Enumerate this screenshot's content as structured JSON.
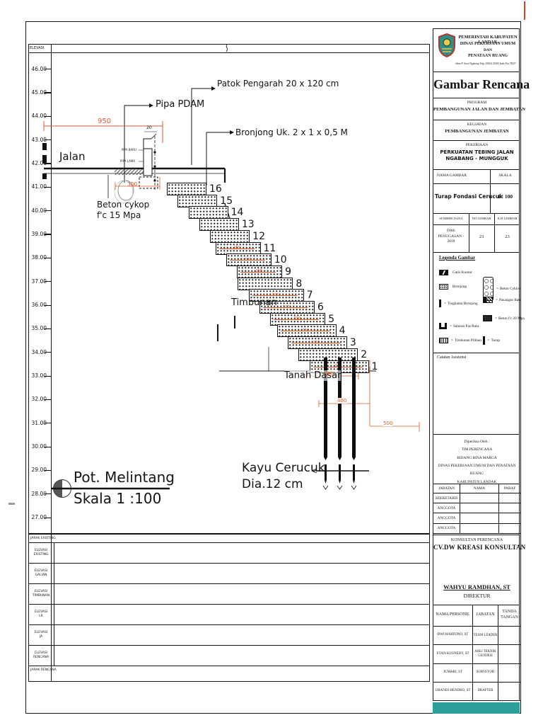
{
  "colors": {
    "line": "#141414",
    "dim_orange": "#e05a28",
    "teal_bar": "#2d9e98",
    "logo_teal": "#2f8f86",
    "logo_red": "#b5372c",
    "logo_yellow": "#e8c54c"
  },
  "drawing": {
    "elevasi_header": "ELEVASI",
    "elevations": [
      "46.00",
      "45.00",
      "44.00",
      "43.00",
      "42.00",
      "41.00",
      "40.00",
      "39.00",
      "38.00",
      "37.00",
      "36.00",
      "35.00",
      "34.00",
      "33.00",
      "32.00",
      "31.00",
      "30.00",
      "29.00",
      "28.00",
      "27.00"
    ],
    "annotations": {
      "jalan": "Jalan",
      "pipa_pdam": "Pipa PDAM",
      "patok_pengarah": "Patok Pengarah 20 x 120 cm",
      "bronjong_uk": "Bronjong Uk. 2 x 1 x 0,5 M",
      "beton_cykop_line1": "Beton cykop",
      "beton_cykop_line2": "f'c 15 Mpa",
      "timbunan": "Timbunan",
      "tanah_dasar": "Tanah Dasar",
      "kayu_cerucuk_line1": "Kayu Cerucuk",
      "kayu_cerucuk_line2": "Dia.12 cm",
      "pot_melintang": "Pot. Melintang",
      "skala": "Skala 1 :100",
      "pipe_tag_top": "PIPA BARU",
      "pipe_tag_bottom": "PIPA LAMA"
    },
    "dimensions": {
      "top_width": "950",
      "pipe_top": "20",
      "cykop_width": "300",
      "step_dim": "200",
      "pile_top": "400",
      "pile_mid": "400",
      "pile_right": "500"
    },
    "steps": [
      {
        "n": "16",
        "dim": ""
      },
      {
        "n": "15",
        "dim": ""
      },
      {
        "n": "14",
        "dim": ""
      },
      {
        "n": "13",
        "dim": ""
      },
      {
        "n": "12",
        "dim": ""
      },
      {
        "n": "11",
        "dim": "200"
      },
      {
        "n": "10",
        "dim": "200"
      },
      {
        "n": "9",
        "dim": "200"
      },
      {
        "n": "8",
        "dim": ""
      },
      {
        "n": "7",
        "dim": "200"
      },
      {
        "n": "6",
        "dim": "200"
      },
      {
        "n": "5",
        "dim": "200"
      },
      {
        "n": "4",
        "dim": "200"
      },
      {
        "n": "3",
        "dim": "200"
      },
      {
        "n": "2",
        "dim": ""
      },
      {
        "n": "1",
        "dim": "200"
      }
    ],
    "bottom_rows": {
      "band_top": "JARAK EXISTING",
      "rows": [
        [
          "ELEVASI",
          "EXISTING"
        ],
        [
          "ELEVASI",
          "GALIAN"
        ],
        [
          "ELEVASI",
          "TIMBUNAN"
        ],
        [
          "ELEVASI",
          "LR"
        ],
        [
          "ELEVASI",
          "JA"
        ],
        [
          "ELEVASI",
          "RENCANA"
        ]
      ],
      "band_bottom": "JARAK RENCANA"
    }
  },
  "titleblock": {
    "header": {
      "line1": "PEMERINTAH KABUPATEN LANDAK",
      "line2": "DINAS PEKERJAAN UMUM",
      "line3": "DAN",
      "line4": "PENATAAN RUANG",
      "address": "Jalan P. Gusti Ngabang Telp. (0563) 21005 kode Pos 78357"
    },
    "doc_title": "Gambar Rencana",
    "program_label": "PROGRAM",
    "program_value": "PEMBANGUNAN JALAN DAN JEMBATAN",
    "kegiatan_label": "KEGIATAN",
    "kegiatan_value": "PEMBANGUNAN JEMBATAN",
    "pekerjaan_label": "PEKERJAAN",
    "pekerjaan_value": "PERKUATAN TEBING JALAN NGABANG - MUNGGUK",
    "nama_gambar_label": "NAMA GAMBAR",
    "skala_label": "SKALA",
    "nama_gambar_value": "Turap Fondasi Cerucuk",
    "skala_value": "1 : 100",
    "sumber_dana_label": "SUMBER DANA",
    "no_lembar_label": "NO LEMBAR",
    "jlh_lembar_label": "JLH LEMBAR",
    "sumber_dana_value": "DAK PENUGASAN - 2018",
    "no_lembar_value": "23",
    "jlh_lembar_value": "23",
    "legend_title": "Legenda Gambar",
    "legend_left": [
      {
        "icon": "kontur",
        "eq": "",
        "label": "Garis Kontur"
      },
      {
        "icon": "bronjong",
        "eq": "",
        "label": "Bronjong"
      },
      {
        "icon": "tingkat",
        "eq": "=",
        "label": "Tingkatan Bronjong"
      },
      {
        "icon": "saluran",
        "eq": "=",
        "label": "Saluran Pas Batu"
      },
      {
        "icon": "timbunan",
        "eq": "=",
        "label": "Timbunan Pilihan"
      }
    ],
    "legend_right": [
      {
        "icon": "cyklop",
        "eq": "=",
        "label": "Beton Cyklop"
      },
      {
        "icon": "pasangan",
        "eq": "=",
        "label": "Pasangan Batu"
      },
      {
        "icon": "beton20",
        "eq": "=",
        "label": "Beton f'c 20 Mpa"
      },
      {
        "icon": "turap",
        "eq": "=",
        "label": "Turap"
      }
    ],
    "catatan_label": "Catatan Asistensi",
    "diperiksa": [
      "Diperiksa Oleh :",
      "TIM PERENCANA",
      "BIDANG BINA MARGA",
      "DINAS PEKERJAAN UMUM DAN PENATAAN RUANG",
      "KABUPATEN LANDAK"
    ],
    "jabatan_table": {
      "headers": [
        "JABATAN",
        "NAMA",
        "PARAF"
      ],
      "rows": [
        "SEKRETARIS",
        "ANGGOTA",
        "ANGGOTA",
        "ANGGOTA"
      ]
    },
    "konsultan_label": "KONSULTAN PERENCANA",
    "konsultan_name": "CV.DW KREASI KONSULTAN",
    "direktur_name": "WAHYU RAMDHAN, ST",
    "direktur_title": "DIREKTUR",
    "personel_table": {
      "headers": [
        "NAMA PERSONIL",
        "JABATAN",
        "TANDA TANGAN"
      ],
      "rows": [
        [
          "DWI HARTONO, ST",
          "TEAM LEADER"
        ],
        [
          "EVAN KUSNEDY, ST",
          "AHLI TEKNIK GEODESI"
        ],
        [
          "JUMARI, ST",
          "SURVEYOR"
        ],
        [
          "URANDI HENDRO, ST",
          "DRAFTER"
        ]
      ]
    }
  }
}
